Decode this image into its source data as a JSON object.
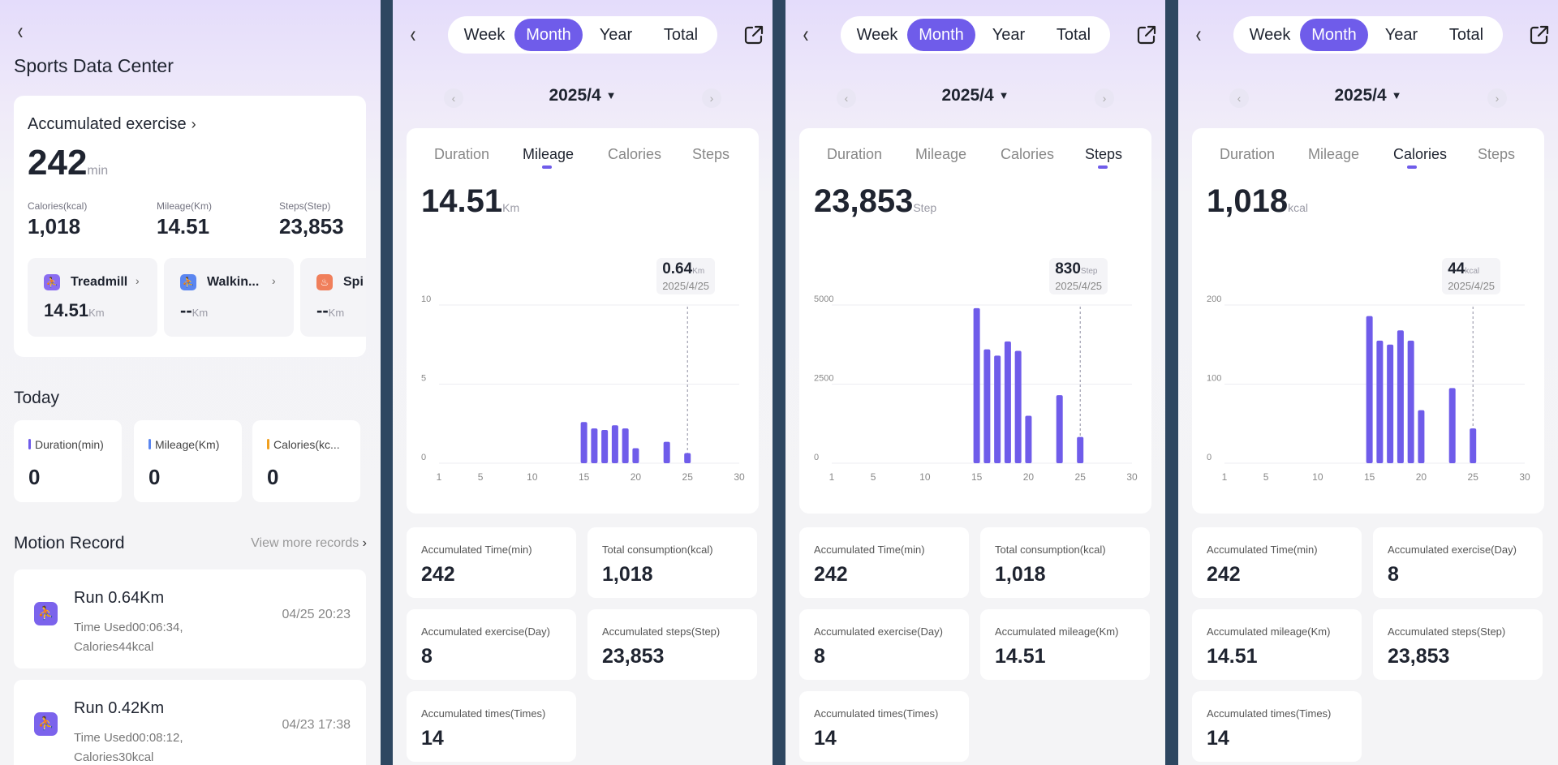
{
  "overview": {
    "title": "Sports Data Center",
    "accumulated_title": "Accumulated exercise",
    "accumulated_value": "242",
    "accumulated_unit": "min",
    "stats": [
      {
        "label": "Calories(kcal)",
        "value": "1,018"
      },
      {
        "label": "Mileage(Km)",
        "value": "14.51"
      },
      {
        "label": "Steps(Step)",
        "value": "23,853"
      }
    ],
    "activities": [
      {
        "name": "Treadmill",
        "value": "14.51",
        "unit": "Km",
        "icon": "treadmill-icon",
        "color": "#8a6cf0"
      },
      {
        "name": "Walkin...",
        "value": "--",
        "unit": "Km",
        "icon": "walking-icon",
        "color": "#5b86f0"
      },
      {
        "name": "Spi",
        "value": "--",
        "unit": "Km",
        "icon": "spinning-icon",
        "color": "#f07f5b"
      }
    ],
    "today_title": "Today",
    "today": [
      {
        "label": "Duration(min)",
        "value": "0",
        "color": "#6f5cea"
      },
      {
        "label": "Mileage(Km)",
        "value": "0",
        "color": "#5b86f0"
      },
      {
        "label": "Calories(kc...",
        "value": "0",
        "color": "#f0a020"
      }
    ],
    "motion_title": "Motion Record",
    "view_more": "View more records",
    "records": [
      {
        "title": "Run 0.64Km",
        "desc": "Time Used00:06:34, Calories44kcal",
        "time": "04/25 20:23"
      },
      {
        "title": "Run 0.42Km",
        "desc": "Time Used00:08:12, Calories30kcal",
        "time": "04/23 17:38"
      }
    ]
  },
  "range_tabs": [
    "Week",
    "Month",
    "Year",
    "Total"
  ],
  "active_range": "Month",
  "date_label": "2025/4",
  "metric_tabs": [
    "Duration",
    "Mileage",
    "Calories",
    "Steps"
  ],
  "colors": {
    "accent": "#6f5cea"
  },
  "chart_data": [
    {
      "type": "bar",
      "panel": "mileage",
      "active_tab": 1,
      "total": "14.51",
      "unit": "Km",
      "x_ticks": [
        "1",
        "5",
        "10",
        "15",
        "20",
        "25",
        "30"
      ],
      "y_ticks": [
        "0",
        "5",
        "10"
      ],
      "ylim": [
        0,
        10
      ],
      "x": [
        15,
        16,
        17,
        18,
        19,
        20,
        23,
        25
      ],
      "values": [
        2.6,
        2.2,
        2.1,
        2.4,
        2.2,
        0.95,
        1.35,
        0.64
      ],
      "tooltip": {
        "value": "0.64",
        "unit": "Km",
        "date": "2025/4/25",
        "x": 25
      },
      "summary": [
        {
          "label": "Accumulated Time(min)",
          "value": "242"
        },
        {
          "label": "Total consumption(kcal)",
          "value": "1,018"
        },
        {
          "label": "Accumulated exercise(Day)",
          "value": "8"
        },
        {
          "label": "Accumulated steps(Step)",
          "value": "23,853"
        },
        {
          "label": "Accumulated times(Times)",
          "value": "14"
        }
      ]
    },
    {
      "type": "bar",
      "panel": "steps",
      "active_tab": 3,
      "total": "23,853",
      "unit": "Step",
      "x_ticks": [
        "1",
        "5",
        "10",
        "15",
        "20",
        "25",
        "30"
      ],
      "y_ticks": [
        "0",
        "2500",
        "5000"
      ],
      "ylim": [
        0,
        5000
      ],
      "x": [
        15,
        16,
        17,
        18,
        19,
        20,
        23,
        25
      ],
      "values": [
        4900,
        3600,
        3400,
        3850,
        3550,
        1500,
        2150,
        830
      ],
      "tooltip": {
        "value": "830",
        "unit": "Step",
        "date": "2025/4/25",
        "x": 25
      },
      "summary": [
        {
          "label": "Accumulated Time(min)",
          "value": "242"
        },
        {
          "label": "Total consumption(kcal)",
          "value": "1,018"
        },
        {
          "label": "Accumulated exercise(Day)",
          "value": "8"
        },
        {
          "label": "Accumulated mileage(Km)",
          "value": "14.51"
        },
        {
          "label": "Accumulated times(Times)",
          "value": "14"
        }
      ]
    },
    {
      "type": "bar",
      "panel": "calories",
      "active_tab": 2,
      "total": "1,018",
      "unit": "kcal",
      "x_ticks": [
        "1",
        "5",
        "10",
        "15",
        "20",
        "25",
        "30"
      ],
      "y_ticks": [
        "0",
        "100",
        "200"
      ],
      "ylim": [
        0,
        200
      ],
      "x": [
        15,
        16,
        17,
        18,
        19,
        20,
        23,
        25
      ],
      "values": [
        186,
        155,
        150,
        168,
        155,
        67,
        95,
        44
      ],
      "tooltip": {
        "value": "44",
        "unit": "kcal",
        "date": "2025/4/25",
        "x": 25
      },
      "summary": [
        {
          "label": "Accumulated Time(min)",
          "value": "242"
        },
        {
          "label": "Accumulated exercise(Day)",
          "value": "8"
        },
        {
          "label": "Accumulated mileage(Km)",
          "value": "14.51"
        },
        {
          "label": "Accumulated steps(Step)",
          "value": "23,853"
        },
        {
          "label": "Accumulated times(Times)",
          "value": "14"
        }
      ]
    }
  ]
}
